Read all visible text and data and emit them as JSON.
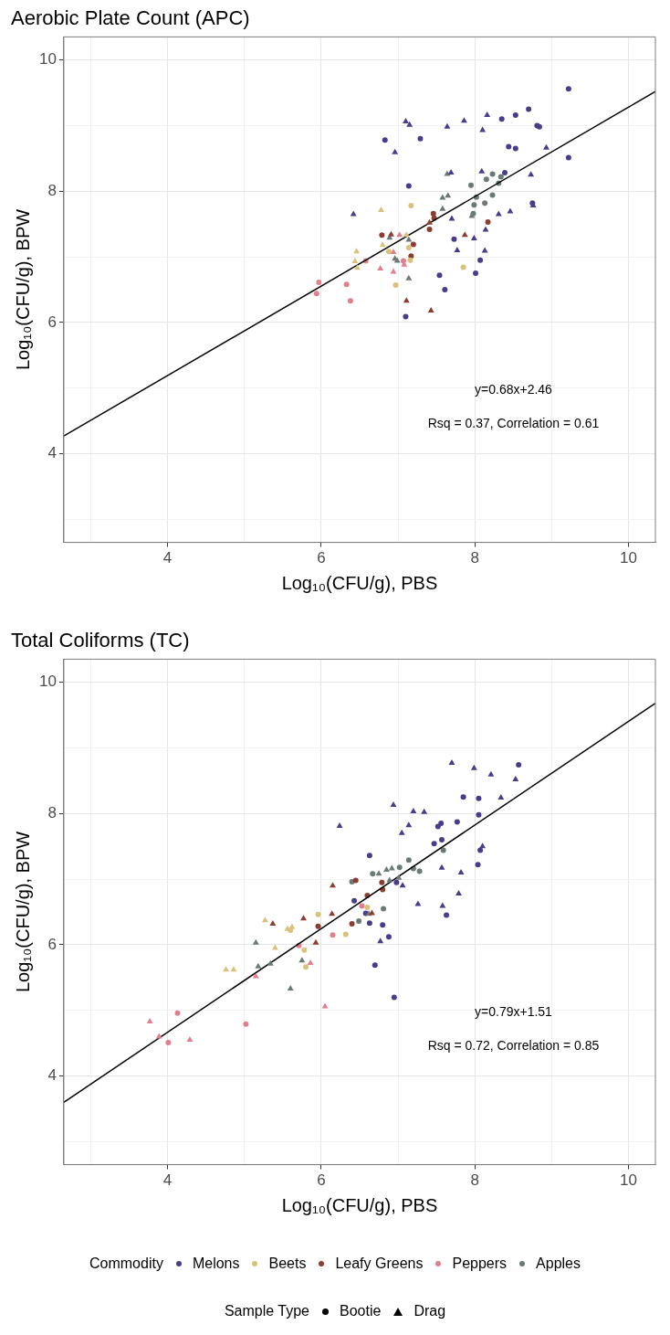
{
  "chart_data": [
    {
      "type": "scatter",
      "title": "Aerobic Plate Count (APC)",
      "xlabel": "Log₁₀(CFU/g), PBS",
      "ylabel": "Log₁₀(CFU/g), BPW",
      "xlim": [
        2.65,
        10.35
      ],
      "ylim": [
        2.65,
        10.35
      ],
      "xticks": [
        {
          "value": 3,
          "label": null
        },
        4,
        {
          "value": 5,
          "label": null
        },
        6,
        {
          "value": 7,
          "label": null
        },
        8,
        {
          "value": 9,
          "label": null
        },
        10
      ],
      "yticks": [
        {
          "value": 3,
          "label": null
        },
        4,
        {
          "value": 5,
          "label": null
        },
        6,
        {
          "value": 7,
          "label": null
        },
        8,
        {
          "value": 9,
          "label": null
        },
        10
      ],
      "grid": true,
      "annotations": [
        "y=0.68x+2.46",
        "Rsq = 0.37, Correlation = 0.61"
      ],
      "series": [
        {
          "color": "#483d8b",
          "marker": "circle",
          "x": [
            9.22,
            8.35,
            8.53,
            8.7,
            8.81,
            8.84,
            6.83,
            7.29,
            8.44,
            8.53,
            9.22,
            8.39,
            7.14,
            8.75,
            7.73,
            8.07,
            7.54,
            8.01,
            7.61,
            7.1
          ],
          "values": [
            9.56,
            9.1,
            9.16,
            9.25,
            9.0,
            8.98,
            8.78,
            8.8,
            8.68,
            8.65,
            8.51,
            8.28,
            8.08,
            7.82,
            7.27,
            6.95,
            6.72,
            6.75,
            6.5,
            6.09
          ]
        },
        {
          "color": "#483d8b",
          "marker": "triangle",
          "x": [
            7.1,
            7.15,
            7.64,
            7.86,
            8.16,
            8.1,
            6.96,
            8.93,
            7.69,
            8.09,
            8.73,
            6.42,
            7.7,
            8.31,
            8.46,
            8.76,
            8.14,
            7.99,
            7.77,
            8.13
          ],
          "values": [
            9.06,
            9.01,
            8.98,
            9.07,
            9.16,
            8.93,
            8.59,
            8.66,
            8.28,
            8.3,
            8.25,
            7.65,
            7.58,
            7.65,
            7.69,
            7.78,
            7.41,
            7.28,
            7.1,
            7.09
          ]
        },
        {
          "color": "#d9c27a",
          "marker": "circle",
          "x": [
            7.17,
            7.14,
            6.88,
            7.16,
            6.97,
            7.85
          ],
          "values": [
            7.78,
            7.14,
            7.08,
            6.95,
            6.57,
            6.84
          ]
        },
        {
          "color": "#d9c27a",
          "marker": "triangle",
          "x": [
            6.78,
            7.11,
            6.8,
            6.46,
            6.44,
            6.47
          ],
          "values": [
            7.71,
            7.33,
            7.18,
            7.08,
            6.93,
            6.83
          ]
        },
        {
          "color": "#8b3e2f",
          "marker": "circle",
          "x": [
            7.46,
            7.47,
            7.41,
            6.79,
            7.2,
            7.17,
            8.17
          ],
          "values": [
            7.66,
            7.59,
            7.42,
            7.33,
            7.19,
            7.01,
            7.53
          ]
        },
        {
          "color": "#8b3e2f",
          "marker": "triangle",
          "x": [
            7.41,
            6.91,
            7.87,
            7.11,
            7.43
          ],
          "values": [
            7.52,
            7.34,
            7.33,
            6.33,
            6.18
          ]
        },
        {
          "color": "#e0808f",
          "marker": "circle",
          "x": [
            5.97,
            5.94,
            6.58,
            6.33,
            6.38,
            7.07
          ],
          "values": [
            6.61,
            6.44,
            6.94,
            6.58,
            6.33,
            6.94
          ]
        },
        {
          "color": "#e0808f",
          "marker": "triangle",
          "x": [
            7.02,
            6.94,
            6.77,
            6.94,
            7.08
          ],
          "values": [
            7.33,
            7.07,
            6.82,
            6.77,
            6.88
          ]
        },
        {
          "color": "#6b7a75",
          "marker": "circle",
          "x": [
            7.95,
            8.15,
            8.23,
            8.34,
            8.31,
            8.02,
            8.23,
            7.99,
            8.13,
            7.98
          ],
          "values": [
            8.09,
            8.18,
            8.26,
            8.22,
            8.12,
            7.91,
            7.94,
            7.79,
            7.82,
            7.66
          ]
        },
        {
          "color": "#6b7a75",
          "marker": "triangle",
          "x": [
            7.64,
            7.58,
            7.65,
            7.58,
            7.96,
            6.89,
            7.14,
            6.96,
            6.99,
            7.14
          ],
          "values": [
            8.26,
            7.9,
            7.93,
            7.73,
            7.62,
            7.29,
            7.26,
            6.97,
            6.94,
            6.67
          ]
        },
        {
          "type": "line",
          "color": "#000000",
          "marker": "none",
          "x": [
            2.65,
            10.35
          ],
          "values": [
            4.27,
            9.52
          ]
        }
      ]
    },
    {
      "type": "scatter",
      "title": "Total Coliforms (TC)",
      "xlabel": "Log₁₀(CFU/g), PBS",
      "ylabel": "Log₁₀(CFU/g), BPW",
      "xlim": [
        2.65,
        10.35
      ],
      "ylim": [
        2.65,
        10.35
      ],
      "xticks": [
        {
          "value": 3,
          "label": null
        },
        4,
        {
          "value": 5,
          "label": null
        },
        6,
        {
          "value": 7,
          "label": null
        },
        8,
        {
          "value": 9,
          "label": null
        },
        10
      ],
      "yticks": [
        {
          "value": 3,
          "label": null
        },
        4,
        {
          "value": 5,
          "label": null
        },
        6,
        {
          "value": 7,
          "label": null
        },
        8,
        {
          "value": 9,
          "label": null
        },
        10
      ],
      "grid": true,
      "legend": "bottom",
      "legend_title": "Commodity",
      "annotations": [
        "y=0.79x+1.51",
        "Rsq = 0.72, Correlation = 0.85"
      ],
      "series": [
        {
          "name": "Melons",
          "color": "#483d8b",
          "marker": "circle",
          "x": [
            8.57,
            7.85,
            8.05,
            8.05,
            7.77,
            7.56,
            7.52,
            7.47,
            7.57,
            8.07,
            8.04,
            6.63,
            6.98,
            6.43,
            6.58,
            6.63,
            6.8,
            6.88,
            7.63,
            6.7,
            6.95
          ],
          "values": [
            8.74,
            8.25,
            8.23,
            7.98,
            7.87,
            7.85,
            7.8,
            7.54,
            7.6,
            7.44,
            7.22,
            7.36,
            6.95,
            6.67,
            6.48,
            6.33,
            6.3,
            6.12,
            6.45,
            5.69,
            5.2
          ]
        },
        {
          "color": "#483d8b",
          "marker": "triangle",
          "x": [
            7.7,
            7.99,
            8.21,
            8.53,
            8.34,
            6.94,
            7.2,
            7.34,
            6.24,
            7.14,
            7.05,
            8.1,
            7.57,
            7.82,
            7.79,
            7.06,
            7.26,
            7.58,
            6.77
          ],
          "values": [
            8.77,
            8.69,
            8.59,
            8.52,
            8.24,
            8.13,
            8.03,
            8.02,
            7.81,
            7.82,
            7.7,
            7.5,
            7.17,
            7.1,
            6.78,
            6.9,
            6.62,
            6.59,
            6.05
          ]
        },
        {
          "name": "Beets",
          "color": "#d9c27a",
          "marker": "circle",
          "x": [
            5.6,
            5.96,
            5.78,
            5.8,
            6.6,
            6.32
          ],
          "values": [
            6.22,
            6.46,
            5.92,
            5.66,
            6.57,
            6.16
          ]
        },
        {
          "color": "#d9c27a",
          "marker": "triangle",
          "x": [
            4.76,
            4.86,
            5.27,
            5.56,
            5.62,
            5.4
          ],
          "values": [
            5.62,
            5.62,
            6.37,
            6.24,
            6.27,
            5.95
          ]
        },
        {
          "name": "Leafy Greens",
          "color": "#8b3e2f",
          "marker": "circle",
          "x": [
            5.96,
            6.45,
            6.79,
            6.8,
            6.6,
            6.4
          ],
          "values": [
            6.28,
            6.98,
            6.95,
            6.84,
            6.75,
            6.32
          ]
        },
        {
          "color": "#8b3e2f",
          "marker": "triangle",
          "x": [
            5.37,
            5.77,
            5.93,
            6.15,
            6.14,
            6.66
          ],
          "values": [
            6.32,
            6.4,
            6.03,
            6.9,
            6.47,
            6.48
          ]
        },
        {
          "name": "Peppers",
          "color": "#e0808f",
          "marker": "circle",
          "x": [
            4.13,
            4.01,
            5.02,
            5.71,
            6.15,
            6.53
          ],
          "values": [
            4.96,
            4.51,
            4.79,
            5.99,
            6.15,
            6.59
          ]
        },
        {
          "color": "#e0808f",
          "marker": "triangle",
          "x": [
            3.77,
            3.89,
            4.29,
            5.15,
            5.86,
            6.05
          ],
          "values": [
            4.83,
            4.6,
            4.55,
            5.52,
            5.72,
            5.06
          ]
        },
        {
          "name": "Apples",
          "color": "#6b7a75",
          "marker": "circle",
          "x": [
            7.59,
            7.14,
            7.2,
            7.28,
            7.02,
            6.67,
            6.4,
            6.81,
            6.49
          ],
          "values": [
            7.44,
            7.29,
            7.16,
            7.12,
            7.18,
            7.08,
            6.96,
            6.55,
            6.36
          ]
        },
        {
          "color": "#6b7a75",
          "marker": "triangle",
          "x": [
            5.15,
            5.18,
            5.34,
            5.6,
            5.75,
            6.75,
            6.85,
            6.92,
            6.89,
            7.01,
            6.62
          ],
          "values": [
            6.03,
            5.67,
            5.71,
            5.33,
            5.76,
            7.08,
            7.14,
            7.16,
            6.98,
            7.02,
            6.47
          ]
        },
        {
          "type": "line",
          "color": "#000000",
          "marker": "none",
          "x": [
            2.65,
            10.35
          ],
          "values": [
            3.6,
            9.68
          ]
        }
      ]
    },
    {
      "type": "other",
      "legend_title": "Sample Type",
      "categories": [
        "Bootie",
        "Drag"
      ]
    }
  ]
}
